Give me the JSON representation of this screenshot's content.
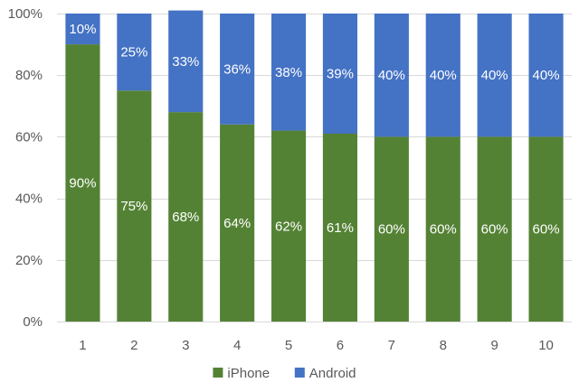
{
  "chart_data": {
    "type": "bar",
    "stacked": true,
    "orientation": "vertical",
    "categories": [
      "1",
      "2",
      "3",
      "4",
      "5",
      "6",
      "7",
      "8",
      "9",
      "10"
    ],
    "series": [
      {
        "name": "iPhone",
        "color": "#548235",
        "values": [
          90,
          75,
          68,
          64,
          62,
          61,
          60,
          60,
          60,
          60
        ]
      },
      {
        "name": "Android",
        "color": "#4472C4",
        "values": [
          10,
          25,
          33,
          36,
          38,
          39,
          40,
          40,
          40,
          40
        ]
      }
    ],
    "data_labels": {
      "iPhone": [
        "90%",
        "75%",
        "68%",
        "64%",
        "62%",
        "61%",
        "60%",
        "60%",
        "60%",
        "60%"
      ],
      "Android": [
        "10%",
        "25%",
        "33%",
        "36%",
        "38%",
        "39%",
        "40%",
        "40%",
        "40%",
        "40%"
      ]
    },
    "ylim": [
      0,
      100
    ],
    "yticks": [
      0,
      20,
      40,
      60,
      80,
      100
    ],
    "ytick_labels": [
      "0%",
      "20%",
      "40%",
      "60%",
      "80%",
      "100%"
    ],
    "grid": true,
    "gridline_color": "#d9d9d9",
    "legend_position": "bottom-center",
    "title": "",
    "xlabel": "",
    "ylabel": ""
  }
}
